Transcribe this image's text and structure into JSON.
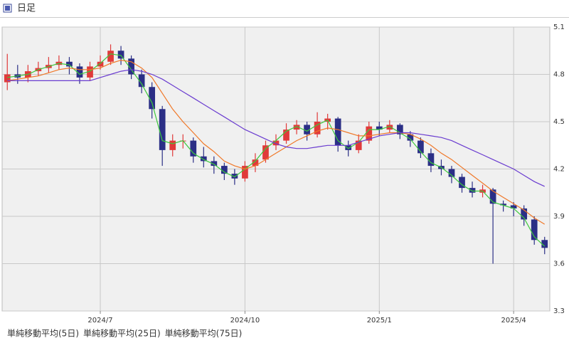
{
  "chart_data": {
    "type": "candlestick",
    "title": "日足",
    "categories": [
      null,
      null,
      null,
      null,
      null,
      null,
      null,
      null,
      null,
      "2024/7",
      null,
      null,
      null,
      null,
      null,
      null,
      null,
      null,
      null,
      null,
      null,
      null,
      null,
      "2024/10",
      null,
      null,
      null,
      null,
      null,
      null,
      null,
      null,
      null,
      null,
      null,
      null,
      "2025/1",
      null,
      null,
      null,
      null,
      null,
      null,
      null,
      null,
      null,
      null,
      null,
      null,
      "2025/4",
      null,
      null,
      null
    ],
    "open": [
      4.75,
      4.8,
      4.78,
      4.82,
      4.84,
      4.86,
      4.88,
      4.85,
      4.78,
      4.85,
      4.88,
      4.95,
      4.9,
      4.8,
      4.72,
      4.58,
      4.32,
      4.38,
      4.38,
      4.28,
      4.25,
      4.22,
      4.17,
      4.14,
      4.22,
      4.26,
      4.35,
      4.38,
      4.45,
      4.48,
      4.42,
      4.5,
      4.52,
      4.35,
      4.32,
      4.38,
      4.47,
      4.45,
      4.48,
      4.42,
      4.38,
      4.3,
      4.22,
      4.2,
      4.15,
      4.08,
      4.05,
      4.07,
      3.98,
      3.97,
      3.95,
      3.88,
      3.75
    ],
    "high": [
      4.93,
      4.86,
      4.86,
      4.88,
      4.91,
      4.92,
      4.91,
      4.87,
      4.88,
      4.92,
      4.99,
      4.98,
      4.92,
      4.83,
      4.75,
      4.6,
      4.42,
      4.42,
      4.4,
      4.34,
      4.28,
      4.24,
      4.2,
      4.25,
      4.3,
      4.38,
      4.42,
      4.49,
      4.51,
      4.5,
      4.56,
      4.55,
      4.53,
      4.38,
      4.42,
      4.5,
      4.5,
      4.51,
      4.49,
      4.44,
      4.4,
      4.33,
      4.26,
      4.22,
      4.17,
      4.12,
      4.1,
      4.08,
      4.0,
      3.99,
      3.97,
      3.9,
      3.77
    ],
    "low": [
      4.7,
      4.74,
      4.75,
      4.79,
      4.81,
      4.83,
      4.8,
      4.74,
      4.76,
      4.83,
      4.86,
      4.86,
      4.77,
      4.68,
      4.52,
      4.22,
      4.28,
      4.33,
      4.24,
      4.21,
      4.17,
      4.13,
      4.1,
      4.12,
      4.18,
      4.24,
      4.32,
      4.36,
      4.42,
      4.38,
      4.4,
      4.45,
      4.31,
      4.28,
      4.3,
      4.36,
      4.41,
      4.43,
      4.39,
      4.34,
      4.27,
      4.18,
      4.16,
      4.11,
      4.05,
      4.02,
      4.02,
      3.6,
      3.93,
      3.9,
      3.84,
      3.72,
      3.66
    ],
    "close": [
      4.8,
      4.78,
      4.82,
      4.84,
      4.86,
      4.88,
      4.85,
      4.78,
      4.85,
      4.88,
      4.95,
      4.9,
      4.8,
      4.72,
      4.58,
      4.32,
      4.38,
      4.38,
      4.28,
      4.25,
      4.22,
      4.17,
      4.14,
      4.22,
      4.26,
      4.35,
      4.38,
      4.45,
      4.48,
      4.42,
      4.5,
      4.52,
      4.35,
      4.32,
      4.38,
      4.47,
      4.45,
      4.48,
      4.42,
      4.38,
      4.3,
      4.22,
      4.2,
      4.15,
      4.08,
      4.05,
      4.07,
      3.98,
      3.97,
      3.95,
      3.88,
      3.75,
      3.7
    ],
    "up_color": "#e03a3a",
    "down_color": "#2b2f86",
    "series": [
      {
        "name": "単純移動平均(5日)",
        "color": "#3cc83c",
        "values": [
          4.78,
          4.79,
          4.8,
          4.83,
          4.85,
          4.87,
          4.86,
          4.8,
          4.82,
          4.87,
          4.93,
          4.92,
          4.83,
          4.74,
          4.62,
          4.38,
          4.36,
          4.38,
          4.3,
          4.26,
          4.23,
          4.18,
          4.15,
          4.2,
          4.25,
          4.33,
          4.38,
          4.44,
          4.47,
          4.44,
          4.48,
          4.51,
          4.38,
          4.33,
          4.37,
          4.45,
          4.45,
          4.47,
          4.43,
          4.39,
          4.31,
          4.24,
          4.21,
          4.16,
          4.1,
          4.06,
          4.06,
          3.99,
          3.97,
          3.95,
          3.89,
          3.77,
          3.71
        ]
      },
      {
        "name": "単純移動平均(25日)",
        "color": "#f07828",
        "values": [
          4.76,
          4.77,
          4.78,
          4.79,
          4.81,
          4.83,
          4.84,
          4.83,
          4.83,
          4.84,
          4.87,
          4.89,
          4.88,
          4.84,
          4.78,
          4.68,
          4.58,
          4.5,
          4.43,
          4.36,
          4.31,
          4.25,
          4.22,
          4.2,
          4.22,
          4.26,
          4.3,
          4.34,
          4.38,
          4.41,
          4.44,
          4.46,
          4.45,
          4.43,
          4.41,
          4.41,
          4.42,
          4.43,
          4.43,
          4.42,
          4.39,
          4.35,
          4.3,
          4.26,
          4.21,
          4.16,
          4.11,
          4.06,
          4.02,
          3.98,
          3.94,
          3.89,
          3.85
        ]
      },
      {
        "name": "単純移動平均(75日)",
        "color": "#6a3cd0",
        "values": [
          4.76,
          4.76,
          4.76,
          4.76,
          4.76,
          4.76,
          4.76,
          4.76,
          4.76,
          4.78,
          4.8,
          4.82,
          4.83,
          4.82,
          4.8,
          4.77,
          4.73,
          4.69,
          4.65,
          4.61,
          4.57,
          4.53,
          4.49,
          4.45,
          4.42,
          4.39,
          4.36,
          4.34,
          4.33,
          4.33,
          4.34,
          4.35,
          4.35,
          4.35,
          4.37,
          4.39,
          4.41,
          4.42,
          4.43,
          4.43,
          4.42,
          4.41,
          4.4,
          4.38,
          4.35,
          4.32,
          4.29,
          4.26,
          4.23,
          4.2,
          4.16,
          4.12,
          4.09
        ]
      }
    ],
    "ylim": [
      3.3,
      5.1
    ],
    "yticks": [
      5.1,
      4.8,
      4.5,
      4.2,
      3.9,
      3.6,
      3.3
    ],
    "grid": true
  }
}
